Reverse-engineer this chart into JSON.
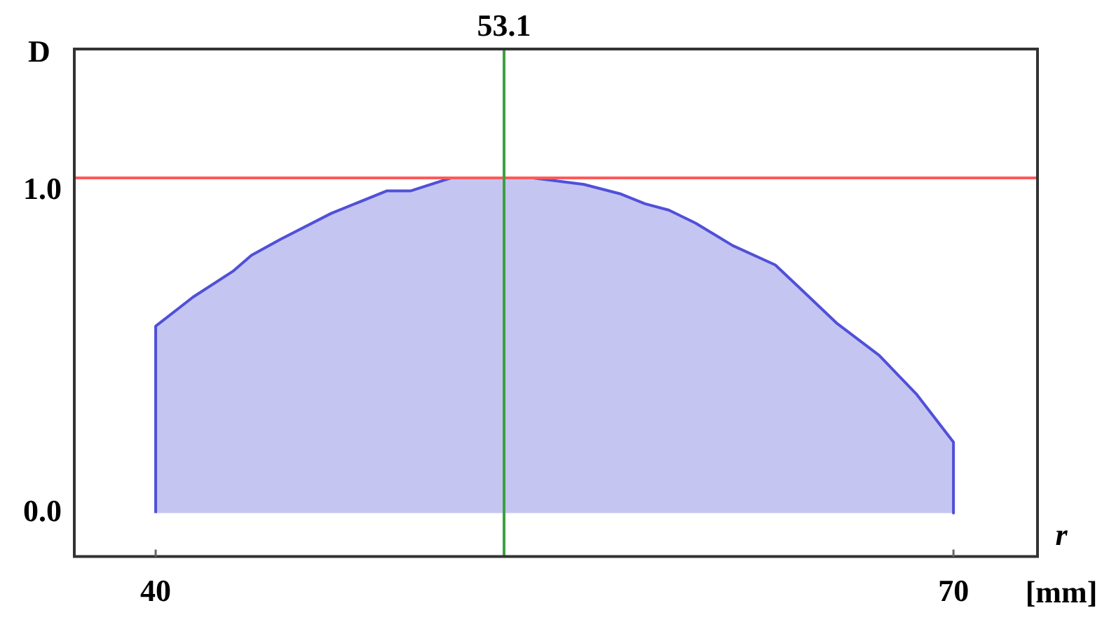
{
  "chart_data": {
    "type": "area",
    "xlabel": "r [mm]",
    "ylabel": "D",
    "x": [
      40,
      40,
      41.4,
      42.9,
      43.6,
      44.7,
      46.6,
      48.7,
      49.6,
      51.1,
      53.0,
      54.2,
      56.1,
      57.5,
      58.4,
      59.3,
      60.3,
      61.7,
      63.3,
      64.2,
      65.6,
      67.2,
      68.6,
      70,
      70
    ],
    "series": [
      {
        "color": "#5050d8",
        "values": [
          0,
          0.58,
          0.67,
          0.75,
          0.8,
          0.85,
          0.93,
          1.0,
          1.0,
          1.04,
          1.04,
          1.04,
          1.02,
          0.99,
          0.96,
          0.94,
          0.9,
          0.83,
          0.77,
          0.7,
          0.59,
          0.49,
          0.37,
          0.22,
          0
        ]
      }
    ],
    "xlim": [
      36.94,
      73.16
    ],
    "xticks": [
      40,
      70
    ],
    "ylim": [
      -0.135,
      1.44
    ],
    "yticks": [
      {
        "value": 0,
        "label": "0.0"
      },
      {
        "value": 1,
        "label": "1.0"
      }
    ],
    "ref_lines": [
      {
        "axis": "y",
        "value": 1.04,
        "color": "#ff5a5a"
      },
      {
        "axis": "x",
        "value": 53.1,
        "label": "53.1",
        "color": "#3ca040"
      }
    ],
    "grid": false,
    "legend": false
  }
}
